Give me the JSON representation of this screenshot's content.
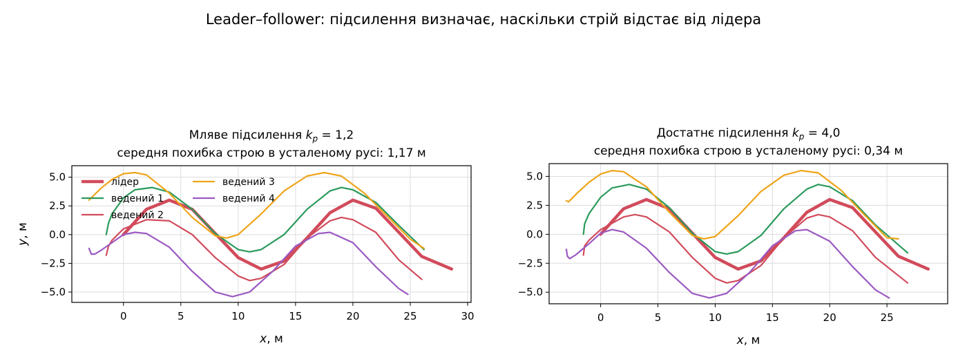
{
  "suptitle": "Leader–follower: підсилення визначає, наскільки стрій відстає від лідера",
  "colors": {
    "leader": "#d14b5b",
    "f1": "#2a9a5b",
    "f2": "#d14b5b",
    "f3": "#efa41a",
    "f4": "#9b59c2",
    "grid": "#dcdcdc",
    "axis": "#000000"
  },
  "chart_data": [
    {
      "type": "line",
      "title_line1": "Мляве підсилення",
      "title_math": "k",
      "title_sub": "p",
      "title_value": "= 1,2",
      "title_line2": "середня похибка строю в усталеному русі: 1,17 м",
      "xlabel_var": "x",
      "xlabel_unit": ", м",
      "ylabel_var": "y",
      "ylabel_unit": ", м",
      "xlim": [
        -4.5,
        30.3
      ],
      "ylim": [
        -5.9,
        6.0
      ],
      "xticks": [
        0,
        5,
        10,
        15,
        20,
        25,
        30
      ],
      "xtick_labels": [
        "0",
        "5",
        "10",
        "15",
        "20",
        "25",
        "30"
      ],
      "yticks": [
        5.0,
        2.5,
        0.0,
        -2.5,
        -5.0
      ],
      "ytick_labels": [
        "5.0",
        "2.5",
        "0.0",
        "−2.5",
        "−5.0"
      ],
      "grid": true,
      "legend": "top-left",
      "series": [
        {
          "key": "leader",
          "name": "лідер",
          "x": [
            0,
            2,
            4,
            6,
            8,
            10,
            12,
            14,
            16,
            18,
            20,
            22,
            24,
            26,
            28.6
          ],
          "y": [
            0,
            2.2,
            3.0,
            2.2,
            0.1,
            -2.0,
            -3.0,
            -2.3,
            -0.3,
            1.9,
            3.0,
            2.3,
            0.2,
            -1.9,
            -3.0
          ]
        },
        {
          "key": "f1",
          "name": "ведений 1",
          "x": [
            -1.5,
            -1.3,
            -1,
            0,
            1,
            2.5,
            4,
            6,
            8,
            10,
            11,
            12,
            14,
            16,
            18,
            19,
            20,
            22,
            24,
            26.2
          ],
          "y": [
            0,
            1.0,
            1.8,
            3.2,
            3.9,
            4.1,
            3.7,
            2.2,
            0.1,
            -1.3,
            -1.5,
            -1.3,
            0,
            2.2,
            3.8,
            4.1,
            3.9,
            2.8,
            0.8,
            -1.3
          ]
        },
        {
          "key": "f2",
          "name": "ведений 2",
          "x": [
            -1.5,
            -1.3,
            -1,
            0,
            2,
            4,
            6,
            8,
            10,
            11,
            12,
            14,
            16,
            18,
            19,
            20,
            22,
            24,
            26
          ],
          "y": [
            -1.8,
            -1.0,
            -0.5,
            0.5,
            1.3,
            1.2,
            0,
            -2.0,
            -3.6,
            -4.0,
            -3.8,
            -2.6,
            -0.3,
            1.2,
            1.5,
            1.3,
            0.2,
            -2.2,
            -3.9
          ]
        },
        {
          "key": "f3",
          "name": "ведений 3",
          "x": [
            -3,
            -2.5,
            -2,
            -1,
            0,
            1,
            2,
            4,
            6,
            8,
            9,
            10,
            12,
            14,
            16,
            17.5,
            19,
            21,
            23,
            25,
            26.2
          ],
          "y": [
            3.0,
            3.5,
            4.0,
            4.8,
            5.3,
            5.4,
            5.2,
            3.6,
            1.5,
            -0.1,
            -0.3,
            0,
            1.8,
            3.8,
            5.1,
            5.4,
            5.1,
            3.6,
            1.6,
            -0.4,
            -1.2
          ]
        },
        {
          "key": "f4",
          "name": "ведений 4",
          "x": [
            -3,
            -2.8,
            -2.5,
            -2,
            -1,
            0,
            1,
            2,
            4,
            6,
            8,
            9.5,
            11,
            13,
            15,
            17,
            18,
            20,
            22,
            24,
            24.8
          ],
          "y": [
            -1.2,
            -1.7,
            -1.7,
            -1.4,
            -0.7,
            0,
            0.2,
            0.1,
            -1.1,
            -3.2,
            -5.0,
            -5.4,
            -5.0,
            -3.2,
            -1.0,
            0.1,
            0.2,
            -0.7,
            -2.8,
            -4.7,
            -5.2
          ]
        }
      ]
    },
    {
      "type": "line",
      "title_line1": "Достатнє підсилення",
      "title_math": "k",
      "title_sub": "p",
      "title_value": "= 4,0",
      "title_line2": "середня похибка строю в усталеному русі: 0,34 м",
      "xlabel_var": "x",
      "xlabel_unit": ", м",
      "ylabel_var": "",
      "ylabel_unit": "",
      "xlim": [
        -4.5,
        30.3
      ],
      "ylim": [
        -6.0,
        6.1
      ],
      "xticks": [
        0,
        5,
        10,
        15,
        20,
        25
      ],
      "xtick_labels": [
        "0",
        "5",
        "10",
        "15",
        "20",
        "25"
      ],
      "yticks": [
        5.0,
        2.5,
        0.0,
        -2.5,
        -5.0
      ],
      "ytick_labels": [
        "5.0",
        "2.5",
        "0.0",
        "−2.5",
        "−5.0"
      ],
      "grid": true,
      "series": [
        {
          "key": "leader",
          "name": "лідер",
          "x": [
            0,
            2,
            4,
            6,
            8,
            10,
            12,
            14,
            16,
            18,
            20,
            22,
            24,
            26,
            28.6
          ],
          "y": [
            0,
            2.2,
            3.0,
            2.2,
            0.1,
            -2.0,
            -3.0,
            -2.3,
            -0.3,
            1.9,
            3.0,
            2.3,
            0.2,
            -1.9,
            -3.0
          ]
        },
        {
          "key": "f1",
          "name": "ведений 1",
          "x": [
            -1.5,
            -1.4,
            -1,
            0,
            1,
            2.5,
            4,
            6,
            8,
            10,
            11,
            12,
            14,
            16,
            18,
            19,
            20,
            22,
            24,
            26.8
          ],
          "y": [
            0,
            0.9,
            1.8,
            3.2,
            4.0,
            4.3,
            3.9,
            2.3,
            0.1,
            -1.5,
            -1.7,
            -1.5,
            -0.1,
            2.2,
            3.9,
            4.3,
            4.1,
            2.9,
            0.8,
            -1.6
          ]
        },
        {
          "key": "f2",
          "name": "ведений 2",
          "x": [
            -1.5,
            -1.4,
            -1,
            0,
            2,
            3,
            4,
            6,
            8,
            10,
            11,
            12,
            14,
            16,
            18,
            19,
            20,
            22,
            24,
            26.8
          ],
          "y": [
            -1.8,
            -1.0,
            -0.5,
            0.4,
            1.5,
            1.7,
            1.5,
            0.2,
            -2.0,
            -3.8,
            -4.2,
            -4.0,
            -2.7,
            -0.3,
            1.4,
            1.7,
            1.5,
            0.3,
            -2.0,
            -4.2
          ]
        },
        {
          "key": "f3",
          "name": "ведений 3",
          "x": [
            -3,
            -2.8,
            -2.5,
            -2,
            -1,
            0,
            1,
            2,
            4,
            6,
            8,
            9,
            10,
            12,
            14,
            16,
            17.5,
            19,
            21,
            23,
            25,
            26
          ],
          "y": [
            2.9,
            2.8,
            3.1,
            3.6,
            4.5,
            5.2,
            5.5,
            5.4,
            4.1,
            1.9,
            -0.1,
            -0.4,
            -0.2,
            1.6,
            3.7,
            5.1,
            5.5,
            5.3,
            3.8,
            1.7,
            -0.3,
            -0.4
          ]
        },
        {
          "key": "f4",
          "name": "ведений 4",
          "x": [
            -3,
            -2.9,
            -2.7,
            -2.2,
            -1,
            0,
            1,
            2,
            4,
            6,
            8,
            9.5,
            11,
            13,
            15,
            17,
            18,
            20,
            22,
            24,
            25.2
          ],
          "y": [
            -1.3,
            -1.9,
            -2.1,
            -1.8,
            -0.8,
            0.1,
            0.4,
            0.2,
            -1.2,
            -3.3,
            -5.1,
            -5.5,
            -5.1,
            -3.3,
            -1.0,
            0.3,
            0.4,
            -0.6,
            -2.8,
            -4.8,
            -5.5
          ]
        }
      ]
    }
  ]
}
